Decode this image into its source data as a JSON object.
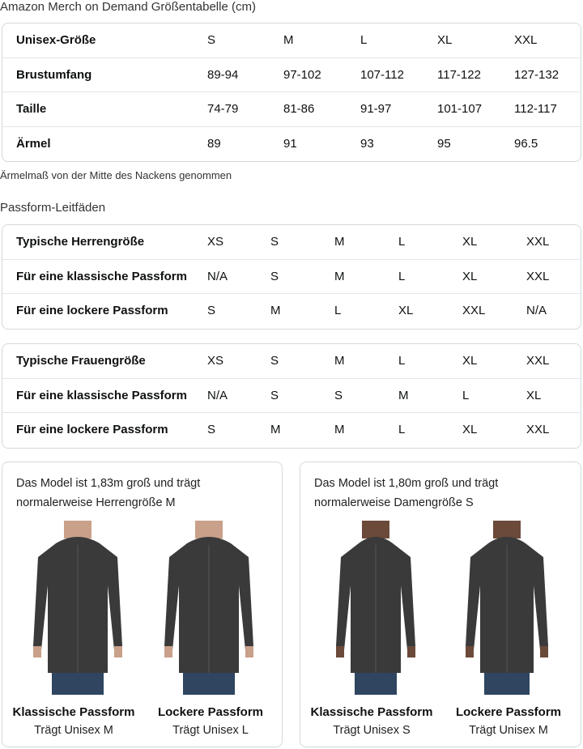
{
  "title": "Amazon Merch on Demand Größentabelle (cm)",
  "size_table": {
    "rows": [
      {
        "label": "Unisex-Größe",
        "values": [
          "S",
          "M",
          "L",
          "XL",
          "XXL"
        ]
      },
      {
        "label": "Brustumfang",
        "values": [
          "89-94",
          "97-102",
          "107-112",
          "117-122",
          "127-132"
        ]
      },
      {
        "label": "Taille",
        "values": [
          "74-79",
          "81-86",
          "91-97",
          "101-107",
          "112-117"
        ]
      },
      {
        "label": "Ärmel",
        "values": [
          "89",
          "91",
          "93",
          "95",
          "96.5"
        ]
      }
    ],
    "note": "Ärmelmaß von der Mitte des Nackens genommen"
  },
  "fit_title": "Passform-Leitfäden",
  "men_table": {
    "rows": [
      {
        "label": "Typische Herrengröße",
        "values": [
          "XS",
          "S",
          "M",
          "L",
          "XL",
          "XXL"
        ]
      },
      {
        "label": "Für eine klassische Passform",
        "values": [
          "N/A",
          "S",
          "M",
          "L",
          "XL",
          "XXL"
        ]
      },
      {
        "label": "Für eine lockere Passform",
        "values": [
          "S",
          "M",
          "L",
          "XL",
          "XXL",
          "N/A"
        ]
      }
    ]
  },
  "women_table": {
    "rows": [
      {
        "label": "Typische Frauengröße",
        "values": [
          "XS",
          "S",
          "M",
          "L",
          "XL",
          "XXL"
        ]
      },
      {
        "label": "Für eine klassische Passform",
        "values": [
          "N/A",
          "S",
          "S",
          "M",
          "L",
          "XL"
        ]
      },
      {
        "label": "Für eine lockere Passform",
        "values": [
          "S",
          "M",
          "M",
          "L",
          "XL",
          "XXL"
        ]
      }
    ]
  },
  "cards": [
    {
      "line1": "Das Model ist 1,83m groß und trägt",
      "line2": "normalerweise Herrengröße M",
      "figures": [
        {
          "title": "Klassische Passform",
          "sub": "Trägt Unisex M"
        },
        {
          "title": "Lockere Passform",
          "sub": "Trägt Unisex L"
        }
      ]
    },
    {
      "line1": "Das Model ist 1,80m groß und trägt",
      "line2": "normalerweise Damengröße S",
      "figures": [
        {
          "title": "Klassische Passform",
          "sub": "Trägt Unisex S"
        },
        {
          "title": "Lockere Passform",
          "sub": "Trägt Unisex M"
        }
      ]
    }
  ],
  "colors": {
    "hoodie": "#3a3a3b",
    "jeans": "#2f4560",
    "border": "#d5d9d9"
  }
}
